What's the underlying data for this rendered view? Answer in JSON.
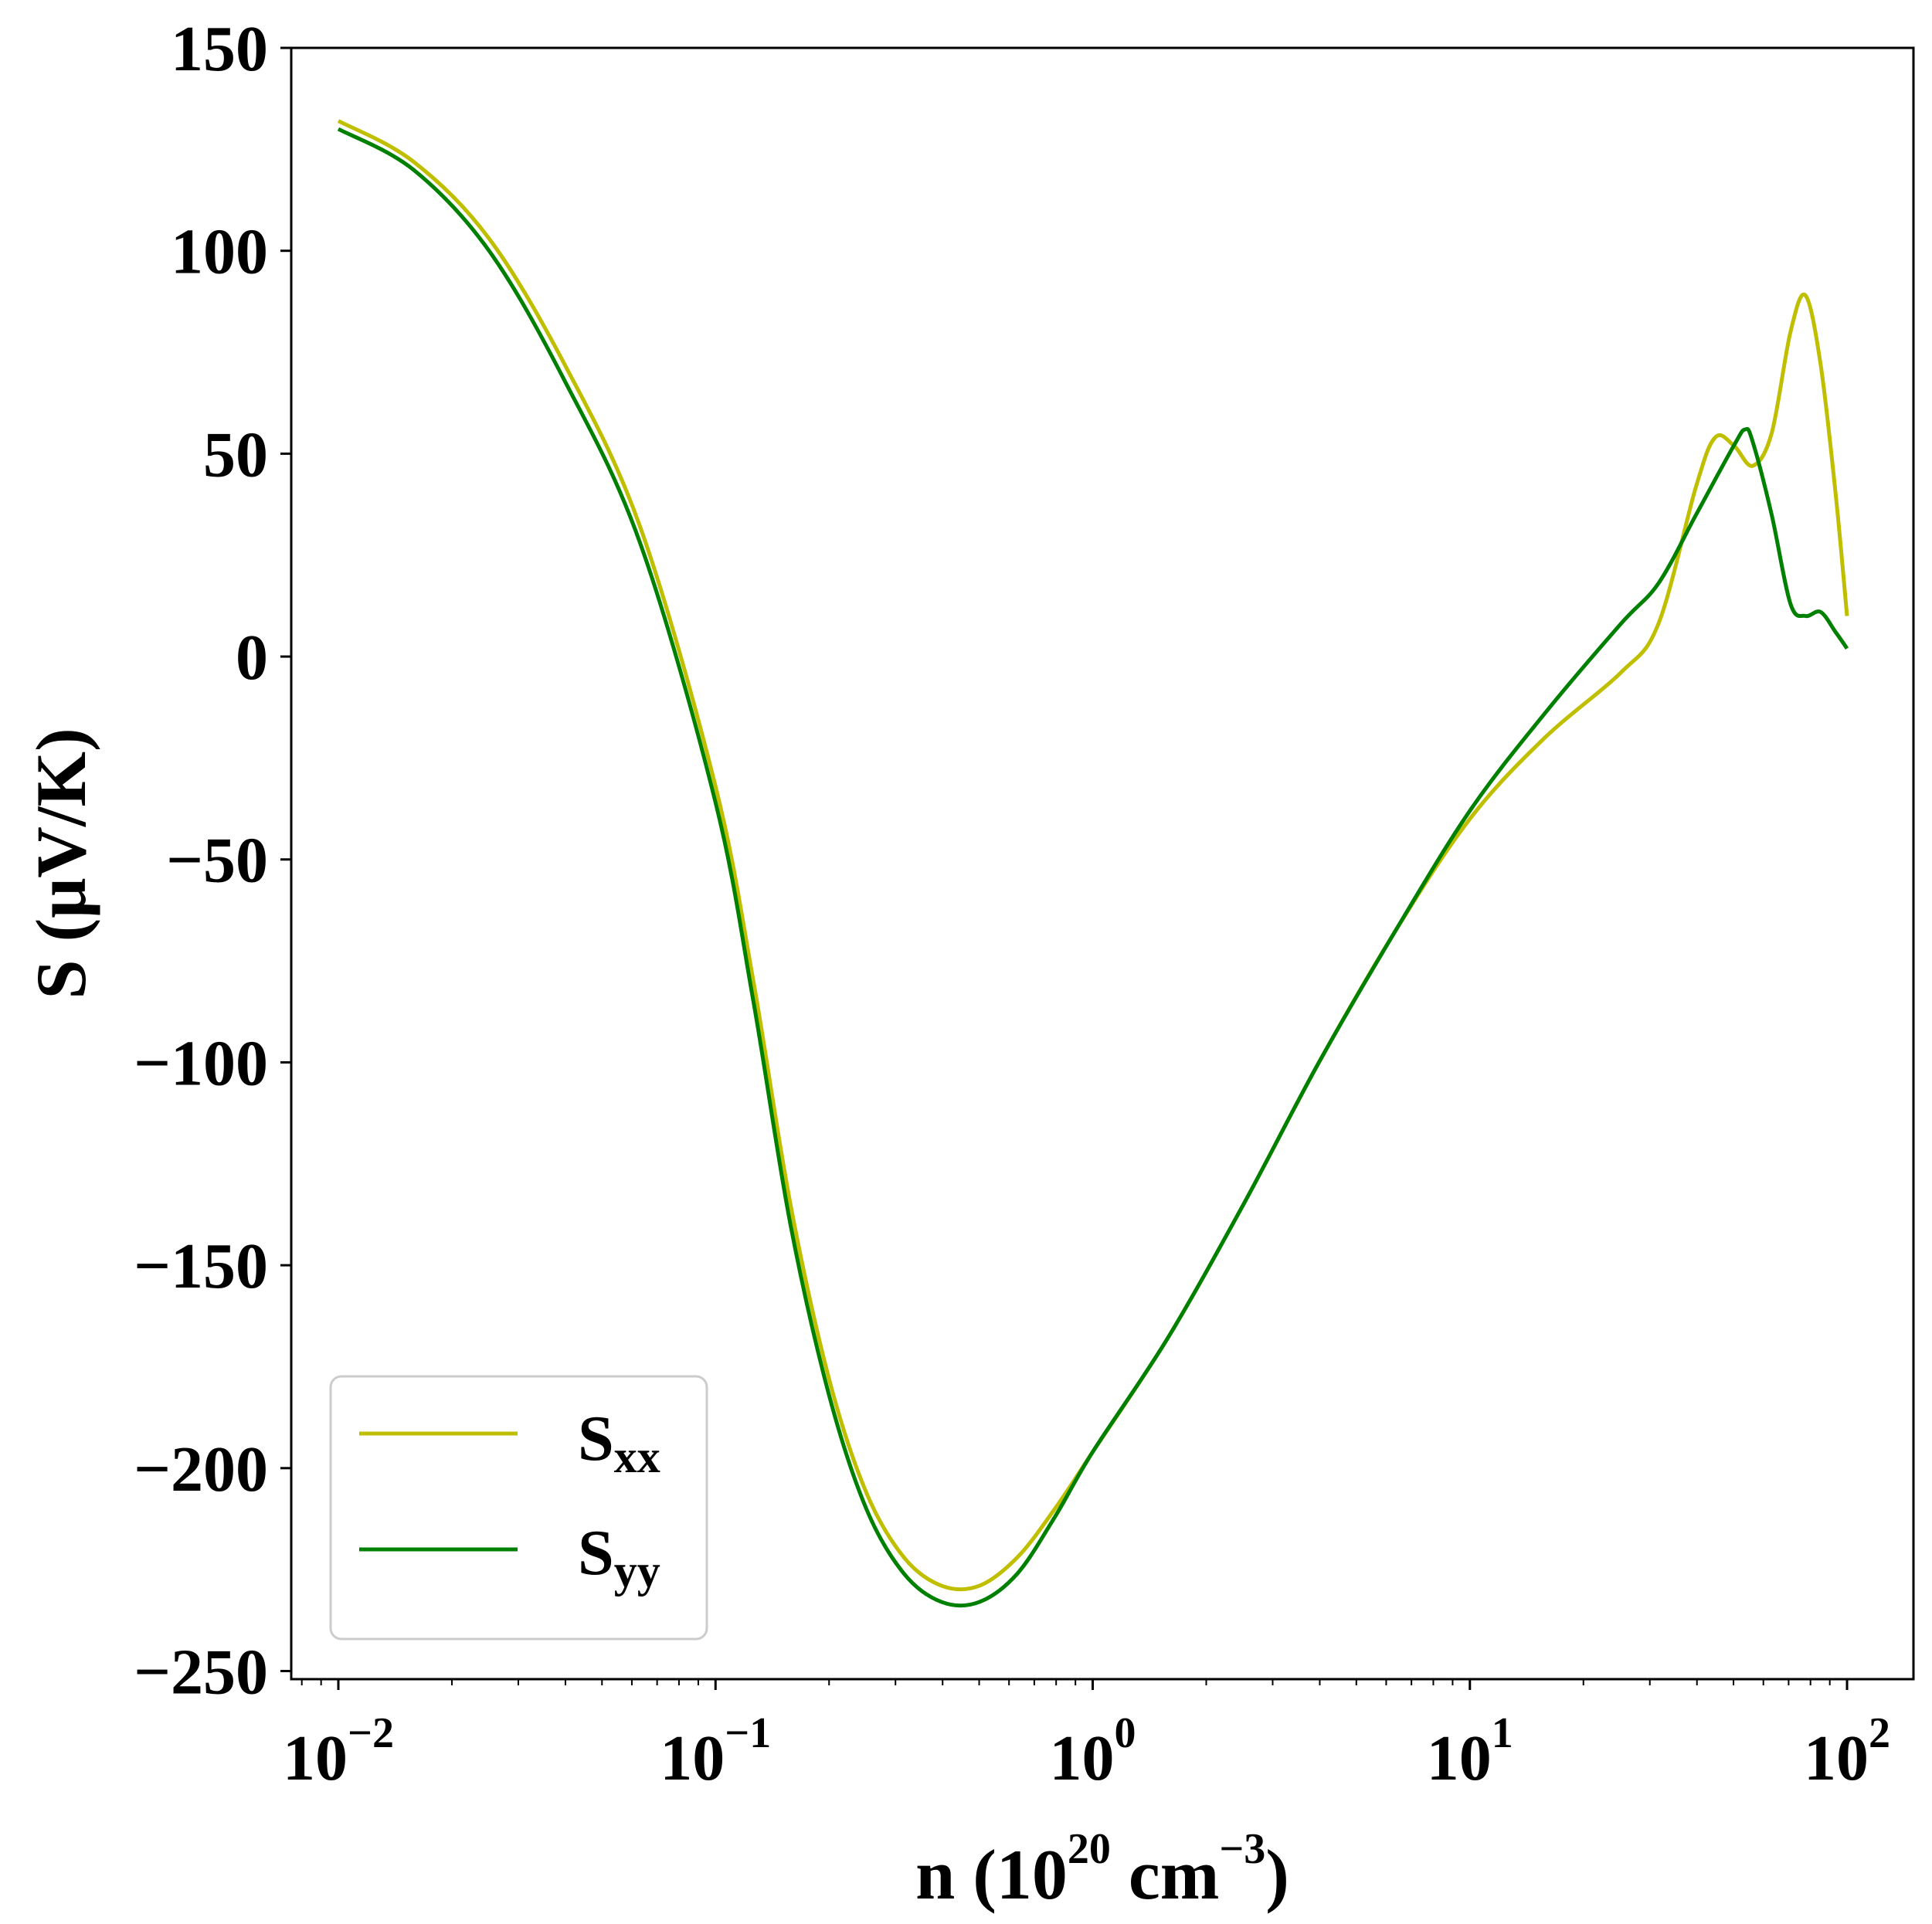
{
  "chart_data": {
    "type": "line",
    "xscale": "log",
    "xlim": [
      0.0075,
      150
    ],
    "ylim": [
      -252,
      150
    ],
    "grid": false,
    "legend_position": "lower-left",
    "xlabel": {
      "prefix": "n (10",
      "sup1": "20",
      "mid": " cm",
      "sup2": "−3",
      "suffix": ")"
    },
    "ylabel": "S (μV/K)",
    "xticks": [
      {
        "value": 0.01,
        "base": "10",
        "exp": "−2"
      },
      {
        "value": 0.1,
        "base": "10",
        "exp": "−1"
      },
      {
        "value": 1,
        "base": "10",
        "exp": "0"
      },
      {
        "value": 10,
        "base": "10",
        "exp": "1"
      },
      {
        "value": 100,
        "base": "10",
        "exp": "2"
      }
    ],
    "yticks": [
      {
        "value": 150,
        "label": "150"
      },
      {
        "value": 100,
        "label": "100"
      },
      {
        "value": 50,
        "label": "50"
      },
      {
        "value": 0,
        "label": "0"
      },
      {
        "value": -50,
        "label": "−50"
      },
      {
        "value": -100,
        "label": "−100"
      },
      {
        "value": -150,
        "label": "−150"
      },
      {
        "value": -200,
        "label": "−200"
      },
      {
        "value": -250,
        "label": "−250"
      }
    ],
    "series": [
      {
        "name": "S",
        "sub": "xx",
        "color": "#bfbf00",
        "points": [
          [
            0.01,
            132
          ],
          [
            0.0158,
            122
          ],
          [
            0.0251,
            103
          ],
          [
            0.0398,
            72
          ],
          [
            0.0631,
            32
          ],
          [
            0.1,
            -32
          ],
          [
            0.126,
            -80
          ],
          [
            0.158,
            -135
          ],
          [
            0.2,
            -178
          ],
          [
            0.251,
            -206
          ],
          [
            0.316,
            -222
          ],
          [
            0.398,
            -229
          ],
          [
            0.5,
            -229
          ],
          [
            0.631,
            -222
          ],
          [
            0.794,
            -210
          ],
          [
            1.0,
            -196
          ],
          [
            1.58,
            -168
          ],
          [
            2.51,
            -135
          ],
          [
            3.98,
            -100
          ],
          [
            6.31,
            -68
          ],
          [
            10,
            -40
          ],
          [
            15.8,
            -20
          ],
          [
            25.1,
            -4
          ],
          [
            31.6,
            8
          ],
          [
            39.8,
            42
          ],
          [
            44.7,
            54
          ],
          [
            50.1,
            52
          ],
          [
            56.2,
            47
          ],
          [
            63.1,
            55
          ],
          [
            70.8,
            80
          ],
          [
            77.6,
            89
          ],
          [
            85.1,
            72
          ],
          [
            93.3,
            40
          ],
          [
            100,
            10
          ]
        ]
      },
      {
        "name": "S",
        "sub": "yy",
        "color": "#008000",
        "points": [
          [
            0.01,
            130
          ],
          [
            0.0158,
            120
          ],
          [
            0.0251,
            100
          ],
          [
            0.0398,
            68
          ],
          [
            0.0631,
            28
          ],
          [
            0.1,
            -36
          ],
          [
            0.126,
            -85
          ],
          [
            0.158,
            -140
          ],
          [
            0.2,
            -182
          ],
          [
            0.251,
            -210
          ],
          [
            0.316,
            -226
          ],
          [
            0.398,
            -233
          ],
          [
            0.5,
            -233
          ],
          [
            0.631,
            -226
          ],
          [
            0.794,
            -212
          ],
          [
            1.0,
            -196
          ],
          [
            1.58,
            -168
          ],
          [
            2.51,
            -135
          ],
          [
            3.98,
            -100
          ],
          [
            6.31,
            -68
          ],
          [
            10,
            -38
          ],
          [
            15.8,
            -14
          ],
          [
            25.1,
            8
          ],
          [
            31.6,
            18
          ],
          [
            39.8,
            35
          ],
          [
            50.1,
            52
          ],
          [
            53.7,
            56
          ],
          [
            56.2,
            53
          ],
          [
            63.1,
            35
          ],
          [
            70.8,
            13
          ],
          [
            77.6,
            10
          ],
          [
            85.1,
            11
          ],
          [
            93.3,
            6
          ],
          [
            100,
            2
          ]
        ]
      }
    ]
  }
}
